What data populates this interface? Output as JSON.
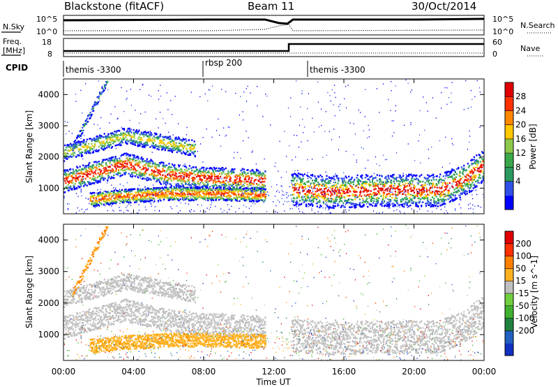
{
  "header": {
    "title": "Blackstone (fitACF)",
    "beam": "Beam 11",
    "date": "30/Oct/2014"
  },
  "summary_panels": {
    "nsky_label": "N.Sky",
    "nsky_ticks": [
      "10^5",
      "10^0"
    ],
    "nsearch_label": "N.Search",
    "freq_label_line1": "Freq.",
    "freq_label_line2": "[MHz]",
    "freq_ticks": [
      "18",
      "8"
    ],
    "nave_label": "Nave",
    "nave_ticks": [
      "60",
      "0"
    ],
    "cpid_label": "CPID",
    "cpid_segments": [
      {
        "label": "themis -3300",
        "start": "00:00",
        "end": "08:00"
      },
      {
        "label": "rbsp 200",
        "start": "08:00",
        "end": "13:00"
      },
      {
        "label": "themis -3300",
        "start": "13:00",
        "end": "24:00"
      }
    ]
  },
  "chart_data": [
    {
      "type": "heatmap",
      "panel": "power",
      "ylabel": "Slant Range [km]",
      "yticks": [
        1000,
        2000,
        3000,
        4000
      ],
      "ylim": [
        180,
        4500
      ],
      "colorbar_label": "Power [dB]",
      "colorbar_ticks": [
        "28",
        "24",
        "20",
        "16",
        "12",
        "8",
        "4"
      ],
      "colorbar_colors": [
        "#0000ff",
        "#3050e8",
        "#2a9a60",
        "#3aa84a",
        "#8cc84a",
        "#ffc800",
        "#ff8800",
        "#ff3000",
        "#e00000"
      ],
      "features": [
        {
          "name": "main band (left)",
          "x": [
            "00:00",
            "03:30",
            "04:30",
            "06:00",
            "08:00",
            "10:00",
            "11:30"
          ],
          "y": [
            1250,
            1800,
            1650,
            1450,
            1350,
            1300,
            1250
          ]
        },
        {
          "name": "upper band (left)",
          "x": [
            "00:00",
            "03:30",
            "06:00",
            "07:30"
          ],
          "y": [
            2150,
            2700,
            2450,
            2300
          ]
        },
        {
          "name": "lower band (left)",
          "x": [
            "01:30",
            "03:00",
            "06:00",
            "09:00",
            "11:30"
          ],
          "y": [
            650,
            750,
            850,
            850,
            800
          ]
        },
        {
          "name": "main band (right)",
          "x": [
            "13:00",
            "15:00",
            "18:00",
            "21:30",
            "23:00",
            "24:00"
          ],
          "y": [
            1000,
            900,
            950,
            950,
            1350,
            1750
          ]
        },
        {
          "name": "rising arc",
          "x": [
            "00:30",
            "02:30"
          ],
          "y": [
            2300,
            4500
          ]
        }
      ]
    },
    {
      "type": "heatmap",
      "panel": "velocity",
      "ylabel": "Slant Range [km]",
      "yticks": [
        1000,
        2000,
        3000,
        4000
      ],
      "ylim": [
        180,
        4500
      ],
      "colorbar_label": "Velocity [m s^-1]",
      "colorbar_ticks": [
        "200",
        "100",
        "50",
        "15",
        "-15",
        "-50",
        "-100",
        "-200"
      ],
      "colorbar_colors": [
        "#1030c0",
        "#2060c0",
        "#208040",
        "#40b030",
        "#70d040",
        "#c0c0c0",
        "#ffb020",
        "#ff8000",
        "#ff3000",
        "#e00000"
      ],
      "xlabel": "Time UT",
      "xticks": [
        "00:00",
        "04:00",
        "08:00",
        "12:00",
        "16:00",
        "20:00",
        "00:00"
      ],
      "xlim_hours": [
        0,
        24
      ]
    }
  ]
}
